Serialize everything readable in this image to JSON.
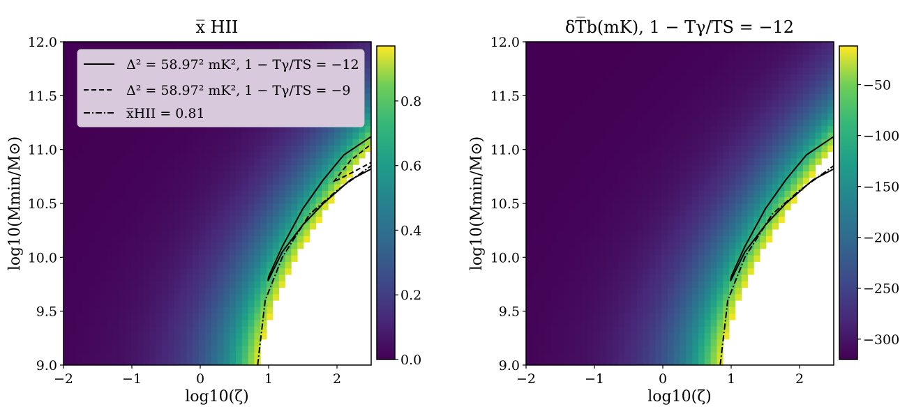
{
  "chart_data": [
    {
      "type": "heatmap",
      "title": "x̅ HII",
      "xlabel": "log10(ζ)",
      "ylabel": "log10(Mmin/M⊙)",
      "xlim": [
        -2,
        2.5
      ],
      "ylim": [
        9.0,
        12.0
      ],
      "x_ticks": [
        "−2",
        "−1",
        "0",
        "1",
        "2"
      ],
      "y_ticks": [
        "9.0",
        "9.5",
        "10.0",
        "10.5",
        "11.0",
        "11.5",
        "12.0"
      ],
      "colorbar": {
        "colormap": "viridis",
        "range": [
          0.0,
          0.97
        ],
        "ticks": [
          "0.0",
          "0.2",
          "0.4",
          "0.6",
          "0.8"
        ]
      },
      "legend": {
        "placement": "upper-left",
        "entries": [
          {
            "style": "solid",
            "label": "Δ² = 58.97² mK², 1 − Tγ/TS = −12"
          },
          {
            "style": "dashed",
            "label": "Δ² = 58.97² mK², 1 − Tγ/TS = −9"
          },
          {
            "style": "dashdot",
            "label": "x̅HII = 0.81"
          }
        ]
      },
      "contours": {
        "solid": [
          [
            0.99,
            9.78
          ],
          [
            1.0,
            9.82
          ],
          [
            1.2,
            10.1
          ],
          [
            1.5,
            10.45
          ],
          [
            1.8,
            10.72
          ],
          [
            2.1,
            10.95
          ],
          [
            2.5,
            11.12
          ],
          [
            2.5,
            10.82
          ],
          [
            2.2,
            10.72
          ],
          [
            1.8,
            10.5
          ],
          [
            1.5,
            10.3
          ],
          [
            1.2,
            10.05
          ],
          [
            0.99,
            9.78
          ]
        ],
        "dashed": [
          [
            1.95,
            10.7
          ],
          [
            2.2,
            10.9
          ],
          [
            2.5,
            11.05
          ],
          [
            2.5,
            10.88
          ],
          [
            2.2,
            10.78
          ],
          [
            1.95,
            10.7
          ]
        ],
        "dashdot": [
          [
            0.84,
            9.0
          ],
          [
            0.95,
            9.6
          ],
          [
            1.2,
            10.0
          ],
          [
            1.6,
            10.4
          ],
          [
            2.0,
            10.62
          ],
          [
            2.5,
            10.85
          ]
        ]
      }
    },
    {
      "type": "heatmap",
      "title": "δT̅b(mK), 1 − Tγ/TS = −12",
      "xlabel": "log10(ζ)",
      "ylabel": "log10(Mmin/M⊙)",
      "xlim": [
        -2,
        2.5
      ],
      "ylim": [
        9.0,
        12.0
      ],
      "x_ticks": [
        "−2",
        "−1",
        "0",
        "1",
        "2"
      ],
      "y_ticks": [
        "9.0",
        "9.5",
        "10.0",
        "10.5",
        "11.0",
        "11.5",
        "12.0"
      ],
      "colorbar": {
        "colormap": "viridis",
        "range": [
          -320,
          -12
        ],
        "ticks": [
          "−300",
          "−250",
          "−200",
          "−150",
          "−100",
          "−50"
        ]
      },
      "contours": {
        "solid": [
          [
            0.99,
            9.78
          ],
          [
            1.0,
            9.82
          ],
          [
            1.2,
            10.1
          ],
          [
            1.5,
            10.45
          ],
          [
            1.8,
            10.72
          ],
          [
            2.1,
            10.95
          ],
          [
            2.5,
            11.12
          ],
          [
            2.5,
            10.82
          ],
          [
            2.2,
            10.72
          ],
          [
            1.8,
            10.5
          ],
          [
            1.5,
            10.3
          ],
          [
            1.2,
            10.05
          ],
          [
            0.99,
            9.78
          ]
        ],
        "dashdot": [
          [
            0.84,
            9.0
          ],
          [
            0.95,
            9.6
          ],
          [
            1.2,
            10.0
          ],
          [
            1.6,
            10.4
          ],
          [
            2.0,
            10.62
          ],
          [
            2.5,
            10.85
          ]
        ]
      }
    }
  ]
}
